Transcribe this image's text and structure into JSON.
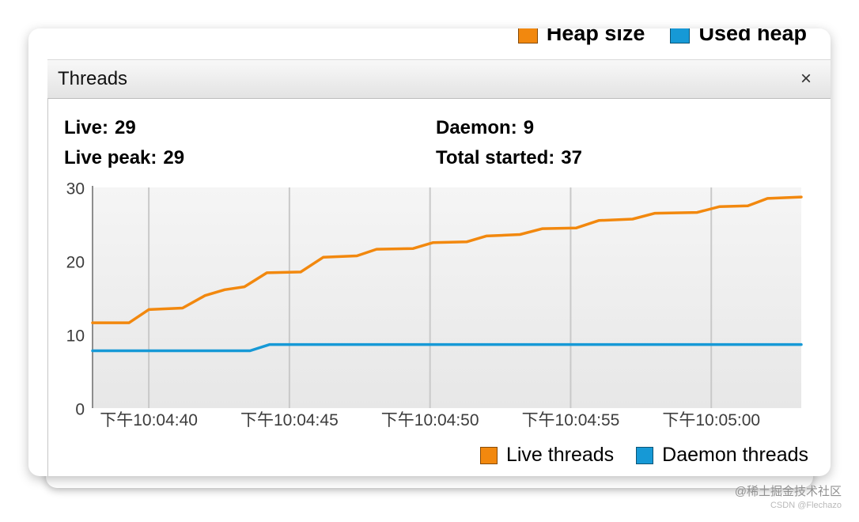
{
  "window": {
    "title": "Threads",
    "close_label": "×"
  },
  "top_legend": {
    "items": [
      {
        "label": "Heap size",
        "color": "#f2880e"
      },
      {
        "label": "Used heap",
        "color": "#1699d6"
      }
    ]
  },
  "stats": {
    "items": [
      {
        "label": "Live:",
        "value": "29"
      },
      {
        "label": "Daemon:",
        "value": "9"
      },
      {
        "label": "Live peak:",
        "value": "29"
      },
      {
        "label": "Total started:",
        "value": "37"
      }
    ]
  },
  "chart_data": {
    "type": "line",
    "title": "Threads over time",
    "x_domain": [
      0,
      25.2
    ],
    "y_domain": [
      0,
      30
    ],
    "y_ticks": [
      0,
      10,
      20,
      30
    ],
    "x_ticks": [
      {
        "t": 2,
        "label": "下午10:04:40"
      },
      {
        "t": 7,
        "label": "下午10:04:45"
      },
      {
        "t": 12,
        "label": "下午10:04:50"
      },
      {
        "t": 17,
        "label": "下午10:04:55"
      },
      {
        "t": 22,
        "label": "下午10:05:00"
      }
    ],
    "grid": true,
    "legend_position": "bottom-right",
    "series": [
      {
        "name": "Live threads",
        "color": "#f2880e",
        "points": [
          [
            0,
            11.6
          ],
          [
            1.3,
            11.6
          ],
          [
            2.0,
            13.4
          ],
          [
            3.2,
            13.6
          ],
          [
            4.0,
            15.3
          ],
          [
            4.7,
            16.1
          ],
          [
            5.4,
            16.5
          ],
          [
            6.2,
            18.4
          ],
          [
            7.4,
            18.5
          ],
          [
            8.2,
            20.5
          ],
          [
            9.4,
            20.7
          ],
          [
            10.1,
            21.6
          ],
          [
            11.4,
            21.7
          ],
          [
            12.1,
            22.5
          ],
          [
            13.3,
            22.6
          ],
          [
            14.0,
            23.4
          ],
          [
            15.2,
            23.6
          ],
          [
            16.0,
            24.4
          ],
          [
            17.2,
            24.5
          ],
          [
            18.0,
            25.5
          ],
          [
            19.2,
            25.7
          ],
          [
            20.0,
            26.5
          ],
          [
            21.5,
            26.6
          ],
          [
            22.3,
            27.4
          ],
          [
            23.3,
            27.5
          ],
          [
            24.0,
            28.5
          ],
          [
            25.2,
            28.7
          ]
        ]
      },
      {
        "name": "Daemon threads",
        "color": "#1699d6",
        "points": [
          [
            0,
            7.8
          ],
          [
            5.6,
            7.8
          ],
          [
            6.3,
            8.65
          ],
          [
            25.2,
            8.65
          ]
        ]
      }
    ]
  },
  "bottom_legend": {
    "items": [
      {
        "label": "Live threads",
        "color": "#f2880e"
      },
      {
        "label": "Daemon threads",
        "color": "#1699d6"
      }
    ]
  },
  "watermark": {
    "line1": "@稀土掘金技术社区",
    "line2": "CSDN @Flechazo"
  }
}
